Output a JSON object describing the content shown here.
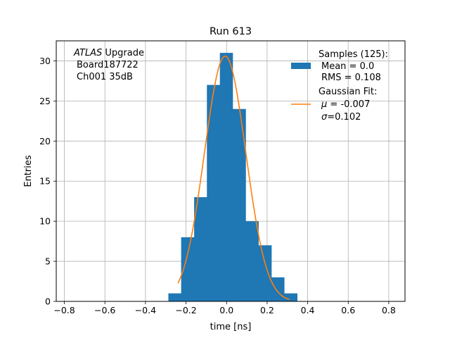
{
  "chart_data": {
    "type": "bar",
    "title": "Run 613",
    "xlabel": "time [ns]",
    "ylabel": "Entries",
    "xlim": [
      -0.84,
      0.88
    ],
    "ylim": [
      0,
      32.5
    ],
    "x_ticks": [
      -0.8,
      -0.6,
      -0.4,
      -0.2,
      0.0,
      0.2,
      0.4,
      0.6,
      0.8
    ],
    "x_tick_labels": [
      "−0.8",
      "−0.6",
      "−0.4",
      "−0.2",
      "0.0",
      "0.2",
      "0.4",
      "0.6",
      "0.8"
    ],
    "y_ticks": [
      0,
      5,
      10,
      15,
      20,
      25,
      30
    ],
    "y_tick_labels": [
      "0",
      "5",
      "10",
      "15",
      "20",
      "25",
      "30"
    ],
    "grid": true,
    "annotation": {
      "line1_italic": "ATLAS",
      "line1_rest": " Upgrade",
      "line2": "Board187722",
      "line3": "Ch001 35dB"
    },
    "legend": {
      "position": "top-right",
      "histogram_entry": [
        "Samples (125):",
        "Mean = 0.0",
        "RMS = 0.108"
      ],
      "fit_entry_title": "Gaussian Fit:",
      "fit_mu_symbol": "μ",
      "fit_mu_value": " = -0.007",
      "fit_sigma_symbol": "σ",
      "fit_sigma_value": "=0.102"
    },
    "histogram": {
      "color": "#1f77b4",
      "bins": [
        {
          "x0": -0.287,
          "x1": -0.224,
          "count": 1
        },
        {
          "x0": -0.224,
          "x1": -0.16,
          "count": 8
        },
        {
          "x0": -0.16,
          "x1": -0.097,
          "count": 13
        },
        {
          "x0": -0.097,
          "x1": -0.033,
          "count": 27
        },
        {
          "x0": -0.033,
          "x1": 0.03,
          "count": 31
        },
        {
          "x0": 0.03,
          "x1": 0.094,
          "count": 24
        },
        {
          "x0": 0.094,
          "x1": 0.157,
          "count": 10
        },
        {
          "x0": 0.157,
          "x1": 0.221,
          "count": 7
        },
        {
          "x0": 0.221,
          "x1": 0.284,
          "count": 3
        },
        {
          "x0": 0.284,
          "x1": 0.348,
          "count": 1
        }
      ]
    },
    "gaussian_fit": {
      "color": "#ff7f0e",
      "amplitude": 30.6,
      "mu": -0.007,
      "sigma": 0.102,
      "x_range": [
        -0.24,
        0.31
      ]
    }
  }
}
